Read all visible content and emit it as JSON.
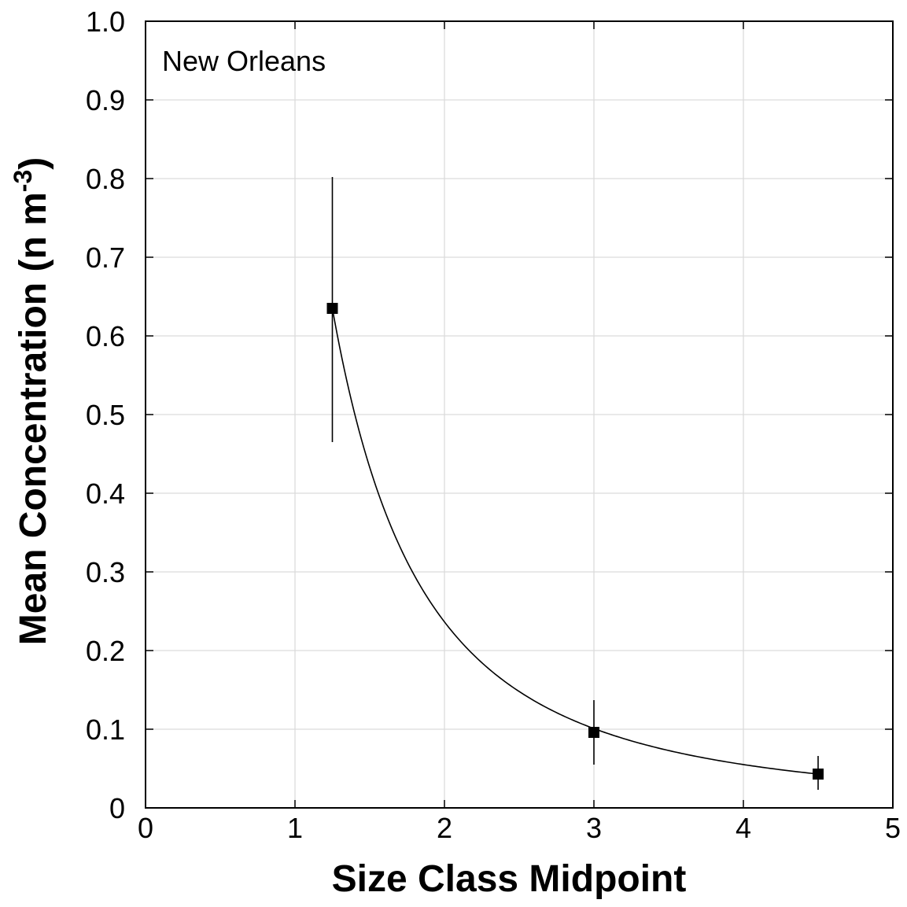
{
  "chart_data": {
    "type": "scatter",
    "annotation": "New Orleans",
    "xlabel": "Size Class Midpoint",
    "ylabel": "Mean Concentration (n m",
    "ylabel_superscript": "-3",
    "ylabel_close": ")",
    "xlim": [
      0,
      5
    ],
    "ylim": [
      0,
      1.0
    ],
    "grid": true,
    "x_ticks": [
      "0",
      "1",
      "2",
      "3",
      "4",
      "5"
    ],
    "y_ticks": [
      "0",
      "0.1",
      "0.2",
      "0.3",
      "0.4",
      "0.5",
      "0.6",
      "0.7",
      "0.8",
      "0.9",
      "1.0"
    ],
    "series": [
      {
        "points": [
          {
            "x": 1.25,
            "y": 0.635,
            "err_low": 0.465,
            "err_high": 0.802
          },
          {
            "x": 3.0,
            "y": 0.096,
            "err_low": 0.055,
            "err_high": 0.137
          },
          {
            "x": 4.5,
            "y": 0.043,
            "err_low": 0.023,
            "err_high": 0.066
          }
        ]
      }
    ],
    "fit_curve": {
      "type": "power",
      "description": "smooth decreasing curve through the points",
      "x_range": [
        1.25,
        4.5
      ]
    }
  }
}
